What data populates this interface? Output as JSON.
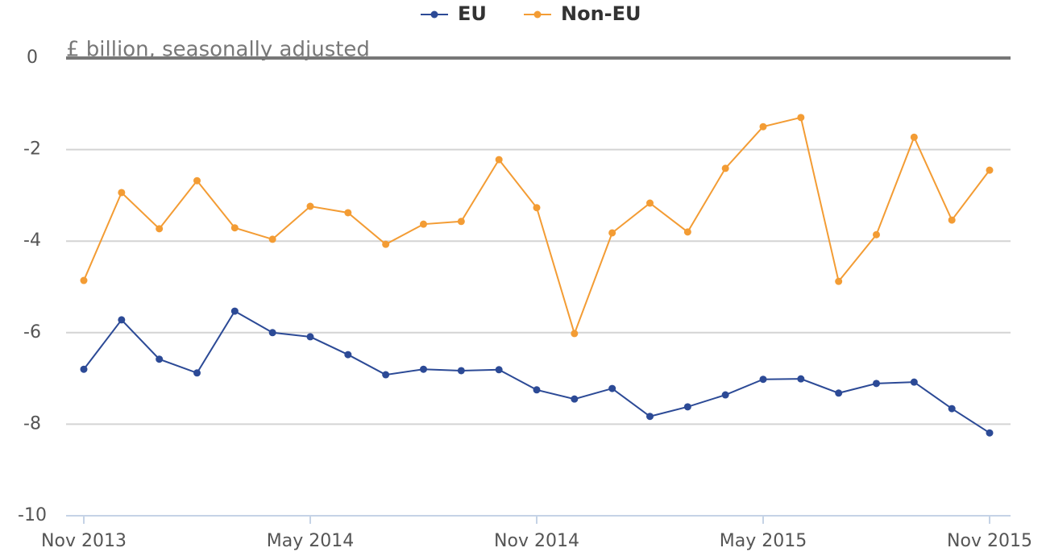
{
  "chart_data": {
    "type": "line",
    "y_label": "£ billion, seasonally adjusted",
    "categories": [
      "Nov 2013",
      null,
      null,
      null,
      null,
      null,
      "May 2014",
      null,
      null,
      null,
      null,
      null,
      "Nov 2014",
      null,
      null,
      null,
      null,
      null,
      "May 2015",
      null,
      null,
      null,
      null,
      null,
      "Nov 2015"
    ],
    "series": [
      {
        "name": "EU",
        "color": "#2c4a96",
        "values": [
          -6.8,
          -5.72,
          -6.58,
          -6.88,
          -5.53,
          -6.0,
          -6.09,
          -6.48,
          -6.92,
          -6.8,
          -6.83,
          -6.81,
          -7.25,
          -7.45,
          -7.22,
          -7.83,
          -7.62,
          -7.36,
          -7.02,
          -7.01,
          -7.32,
          -7.11,
          -7.08,
          -7.66,
          -8.19
        ]
      },
      {
        "name": "Non-EU",
        "color": "#f39c34",
        "values": [
          -4.86,
          -2.94,
          -3.73,
          -2.68,
          -3.71,
          -3.96,
          -3.24,
          -3.38,
          -4.07,
          -3.63,
          -3.57,
          -2.22,
          -3.27,
          -6.02,
          -3.82,
          -3.17,
          -3.8,
          -2.41,
          -1.5,
          -1.3,
          -4.88,
          -3.86,
          -1.73,
          -3.54,
          -2.45
        ]
      }
    ],
    "ylim": [
      -10,
      0
    ],
    "yticks": [
      0,
      -2,
      -4,
      -6,
      -8,
      -10
    ],
    "grid": true,
    "legend": "top"
  }
}
